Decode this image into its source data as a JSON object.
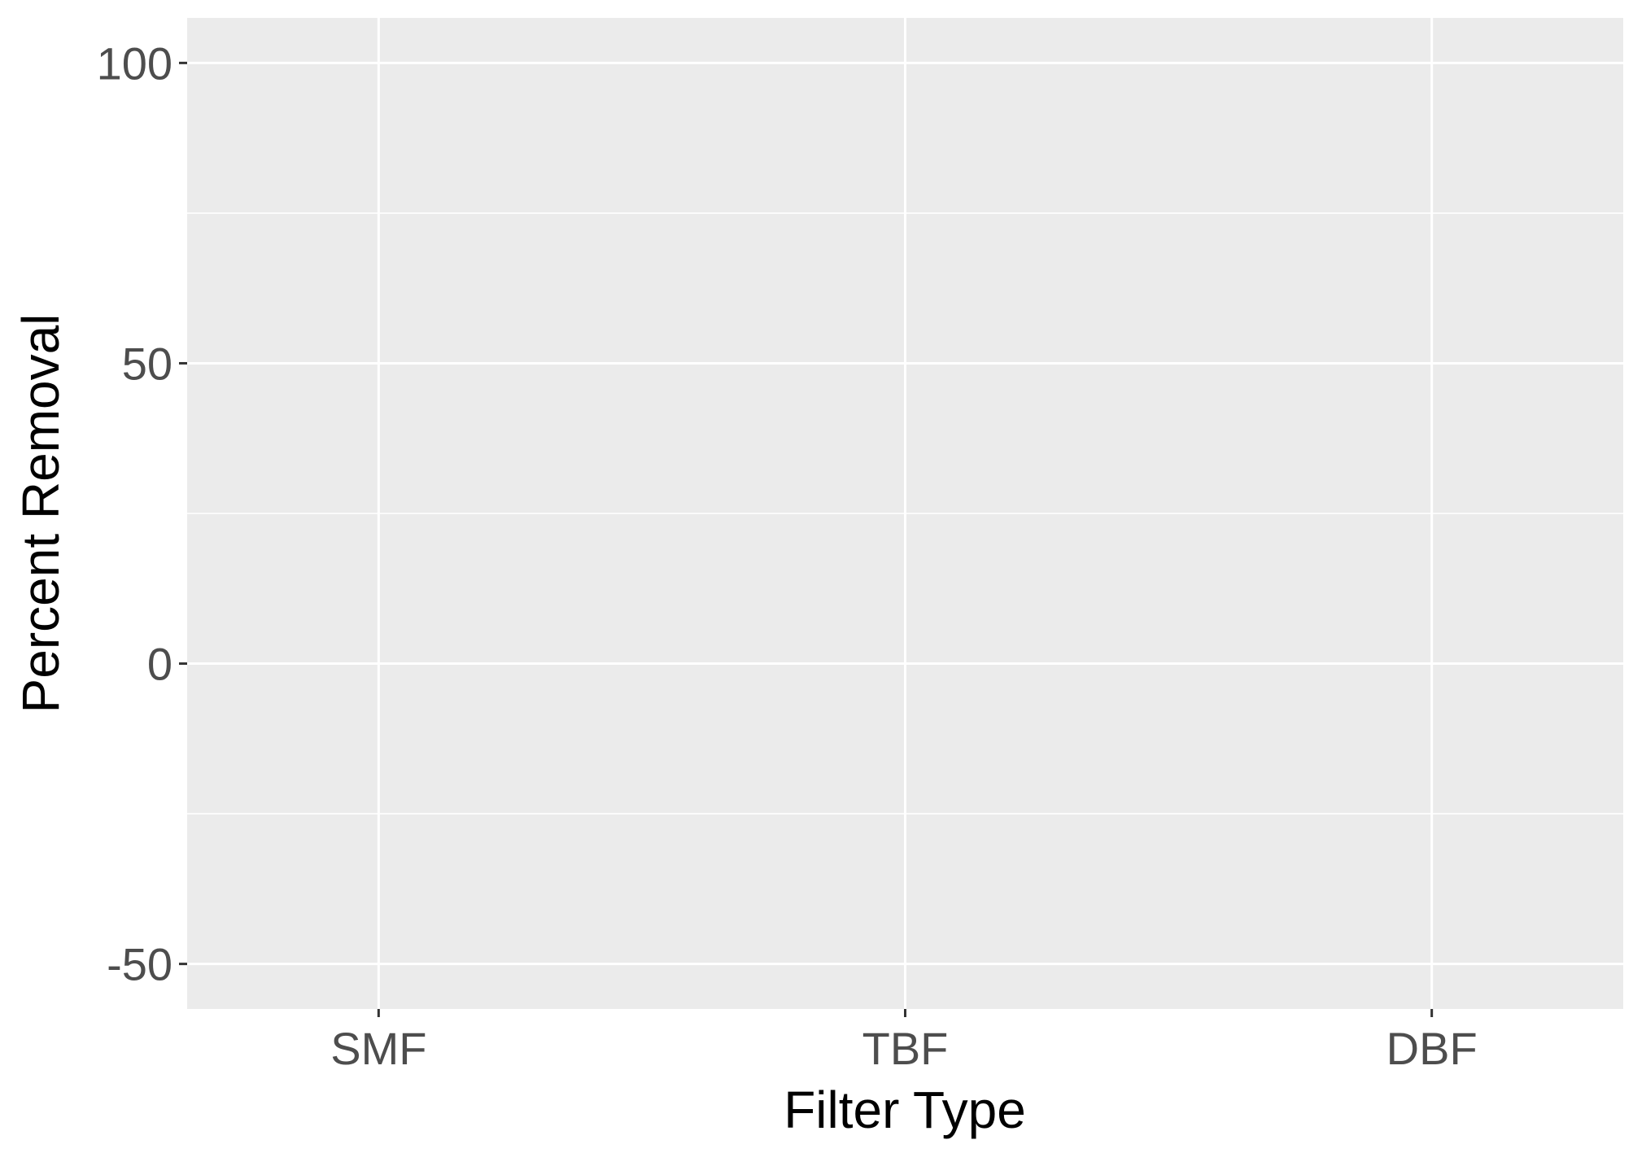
{
  "chart_data": {
    "type": "scatter",
    "categories": [
      "SMF",
      "TBF",
      "DBF"
    ],
    "series": [],
    "xlabel": "Filter Type",
    "ylabel": "Percent Removal",
    "ylim": [
      -57.5,
      107.5
    ],
    "yticks": [
      -50,
      0,
      50,
      100
    ],
    "y_minor_grid": [
      -25,
      25,
      75
    ],
    "grid": true,
    "legend": "none",
    "panel_background": "#ebebeb",
    "grid_color": "#ffffff"
  }
}
